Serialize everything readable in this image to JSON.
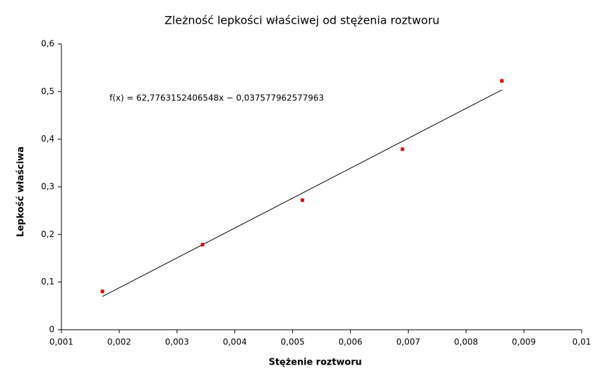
{
  "chart_data": {
    "type": "scatter",
    "title": "Zleżność lepkości właściwej od stężenia roztworu",
    "xlabel": "Stężenie roztworu",
    "ylabel": "Lepkość właściwa",
    "x": [
      0.00171,
      0.00344,
      0.00517,
      0.0069,
      0.00862
    ],
    "values": [
      0.0805,
      0.1785,
      0.272,
      0.379,
      0.5224
    ],
    "color": "#e00000",
    "trendline": {
      "label": "f(x) = 62,7763152406548x − 0,037577962577963",
      "slope": 62.7763152406548,
      "intercept": -0.037577962577963,
      "color": "#000000"
    },
    "xlim": [
      0.001,
      0.01
    ],
    "xticks": [
      {
        "value": 0.001,
        "label": "0,001"
      },
      {
        "value": 0.002,
        "label": "0,002"
      },
      {
        "value": 0.003,
        "label": "0,003"
      },
      {
        "value": 0.004,
        "label": "0,004"
      },
      {
        "value": 0.005,
        "label": "0,005"
      },
      {
        "value": 0.006,
        "label": "0,006"
      },
      {
        "value": 0.007,
        "label": "0,007"
      },
      {
        "value": 0.008,
        "label": "0,008"
      },
      {
        "value": 0.009,
        "label": "0,009"
      },
      {
        "value": 0.01,
        "label": "0,01"
      }
    ],
    "ylim": [
      0,
      0.6
    ],
    "yticks": [
      0,
      {
        "value": 0.1,
        "label": "0,1"
      },
      {
        "value": 0.2,
        "label": "0,2"
      },
      {
        "value": 0.3,
        "label": "0,3"
      },
      {
        "value": 0.4,
        "label": "0,4"
      },
      {
        "value": 0.5,
        "label": "0,5"
      },
      {
        "value": 0.6,
        "label": "0,6"
      }
    ],
    "grid": false
  }
}
